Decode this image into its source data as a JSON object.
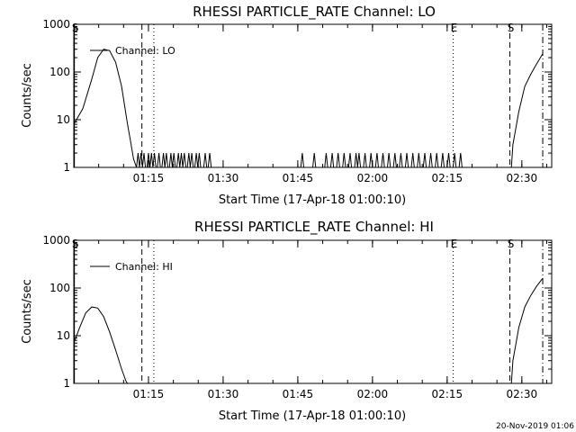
{
  "footer": {
    "timestamp": "20-Nov-2019 01:06"
  },
  "chart_data": [
    {
      "type": "line",
      "title": "RHESSI PARTICLE_RATE Channel: LO",
      "xlabel": "Start Time (17-Apr-18 01:00:10)",
      "ylabel": "Counts/sec",
      "yscale": "log",
      "xlim": [
        1.0,
        2.6
      ],
      "ylim": [
        1,
        1000
      ],
      "xticks": [
        1.25,
        1.5,
        1.75,
        2.0,
        2.25,
        2.5
      ],
      "xtick_labels": [
        "01:15",
        "01:30",
        "01:45",
        "02:00",
        "02:15",
        "02:30"
      ],
      "yticks": [
        1,
        10,
        100,
        1000
      ],
      "ytick_labels": [
        "1",
        "10",
        "100",
        "1000"
      ],
      "legend": {
        "label": "Channel: LO",
        "position": "top-left"
      },
      "markers": [
        {
          "label": "S",
          "x": 1.002,
          "style": "solid"
        },
        {
          "label": "",
          "x": 1.228,
          "style": "dashed"
        },
        {
          "label": "",
          "x": 1.268,
          "style": "dotted"
        },
        {
          "label": "E",
          "x": 2.27,
          "style": "dotted"
        },
        {
          "label": "S",
          "x": 2.46,
          "style": "dashed"
        },
        {
          "label": "",
          "x": 2.57,
          "style": "dashdot"
        }
      ],
      "series": [
        {
          "x": [
            1.0,
            1.03,
            1.06,
            1.08,
            1.1,
            1.12,
            1.14,
            1.16,
            1.17,
            1.18,
            1.19,
            1.2,
            1.21,
            1.215,
            1.22,
            1.225,
            1.23,
            1.235,
            1.24,
            1.245,
            1.25,
            1.255,
            1.26,
            1.265,
            1.27,
            1.275,
            1.28,
            1.285,
            1.29,
            1.295,
            1.3,
            1.305,
            1.31,
            1.315,
            1.32,
            1.325,
            1.33,
            1.335,
            1.34,
            1.345,
            1.35,
            1.355,
            1.36,
            1.365,
            1.37,
            1.375,
            1.38,
            1.385,
            1.39,
            1.395,
            1.4,
            1.405,
            1.41,
            1.415,
            1.42,
            1.425,
            1.43,
            1.435,
            1.44,
            1.445,
            1.45,
            1.455,
            1.46,
            1.465,
            1.47
          ],
          "y": [
            8,
            17,
            70,
            200,
            300,
            280,
            160,
            50,
            20,
            8,
            3.5,
            1.5,
            1,
            2,
            1,
            2,
            1,
            2,
            1,
            1,
            2,
            1,
            2,
            1,
            2,
            1,
            1,
            2,
            1,
            1,
            2,
            1,
            2,
            1,
            1,
            2,
            1,
            2,
            1,
            1,
            2,
            1,
            2,
            1,
            2,
            1,
            1,
            2,
            1,
            2,
            1,
            1,
            2,
            1,
            2,
            1,
            1,
            1,
            2,
            1,
            1,
            2,
            1,
            1,
            1
          ]
        },
        {
          "x": [
            1.76,
            1.765,
            1.77,
            1.8,
            1.805,
            1.81,
            1.84,
            1.845,
            1.85,
            1.86,
            1.865,
            1.87,
            1.88,
            1.885,
            1.89,
            1.9,
            1.905,
            1.91,
            1.92,
            1.925,
            1.93,
            1.94,
            1.945,
            1.95,
            1.955,
            1.96,
            1.97,
            1.975,
            1.98,
            1.99,
            1.995,
            2.0,
            2.01,
            2.015,
            2.02,
            2.03,
            2.035,
            2.04,
            2.05,
            2.055,
            2.06,
            2.07,
            2.075,
            2.08,
            2.09,
            2.095,
            2.1,
            2.11,
            2.115,
            2.12,
            2.13,
            2.135,
            2.14,
            2.15,
            2.155,
            2.16,
            2.17,
            2.175,
            2.18,
            2.19,
            2.195,
            2.2,
            2.21,
            2.215,
            2.22,
            2.23,
            2.235,
            2.24,
            2.25,
            2.255,
            2.26,
            2.27,
            2.275,
            2.28,
            2.29,
            2.295,
            2.3
          ],
          "y": [
            1,
            2,
            1,
            1,
            2,
            1,
            1,
            2,
            1,
            1,
            2,
            1,
            1,
            2,
            1,
            1,
            2,
            1,
            1,
            2,
            1,
            1,
            2,
            1,
            2,
            1,
            1,
            2,
            1,
            1,
            2,
            1,
            1,
            2,
            1,
            1,
            2,
            1,
            1,
            2,
            1,
            1,
            2,
            1,
            1,
            2,
            1,
            1,
            2,
            1,
            1,
            2,
            1,
            1,
            2,
            1,
            1,
            2,
            1,
            1,
            2,
            1,
            1,
            2,
            1,
            1,
            2,
            1,
            1,
            2,
            1,
            1,
            2,
            1,
            1,
            2,
            1
          ]
        },
        {
          "x": [
            2.465,
            2.47,
            2.49,
            2.51,
            2.53,
            2.55,
            2.57
          ],
          "y": [
            1,
            3,
            15,
            50,
            90,
            150,
            240
          ]
        }
      ]
    },
    {
      "type": "line",
      "title": "RHESSI PARTICLE_RATE Channel: HI",
      "xlabel": "Start Time (17-Apr-18 01:00:10)",
      "ylabel": "Counts/sec",
      "yscale": "log",
      "xlim": [
        1.0,
        2.6
      ],
      "ylim": [
        1,
        1000
      ],
      "xticks": [
        1.25,
        1.5,
        1.75,
        2.0,
        2.25,
        2.5
      ],
      "xtick_labels": [
        "01:15",
        "01:30",
        "01:45",
        "02:00",
        "02:15",
        "02:30"
      ],
      "yticks": [
        1,
        10,
        100,
        1000
      ],
      "ytick_labels": [
        "1",
        "10",
        "100",
        "1000"
      ],
      "legend": {
        "label": "Channel: HI",
        "position": "top-left"
      },
      "markers": [
        {
          "label": "S",
          "x": 1.002,
          "style": "solid"
        },
        {
          "label": "",
          "x": 1.228,
          "style": "dashed"
        },
        {
          "label": "",
          "x": 1.268,
          "style": "dotted"
        },
        {
          "label": "E",
          "x": 2.27,
          "style": "dotted"
        },
        {
          "label": "S",
          "x": 2.46,
          "style": "dashed"
        },
        {
          "label": "",
          "x": 2.57,
          "style": "dashdot"
        }
      ],
      "series": [
        {
          "x": [
            1.0,
            1.02,
            1.04,
            1.06,
            1.08,
            1.1,
            1.12,
            1.14,
            1.16,
            1.175,
            1.18
          ],
          "y": [
            7,
            15,
            30,
            40,
            38,
            25,
            12,
            5,
            2,
            1.1,
            1
          ]
        },
        {
          "x": [
            2.465,
            2.47,
            2.49,
            2.51,
            2.53,
            2.55,
            2.57
          ],
          "y": [
            1,
            3,
            15,
            40,
            70,
            110,
            160
          ]
        }
      ]
    }
  ]
}
